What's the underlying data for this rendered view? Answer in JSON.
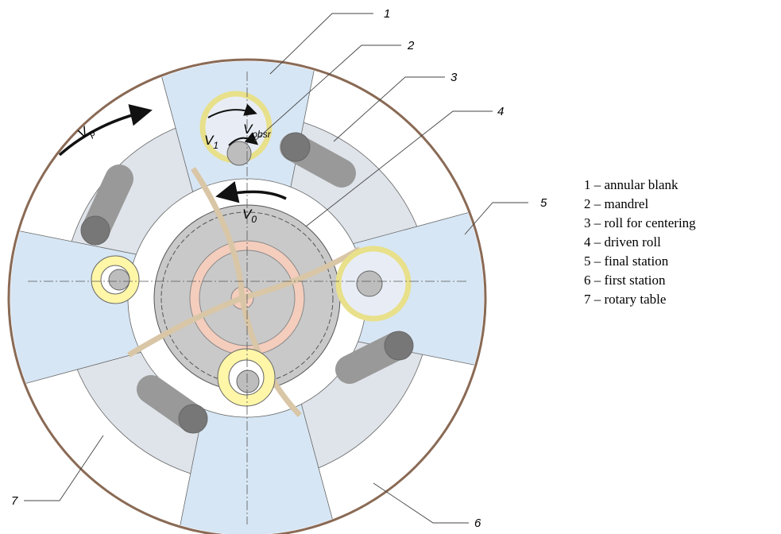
{
  "callouts": [
    "1",
    "2",
    "3",
    "4",
    "5",
    "6",
    "7"
  ],
  "velocities": [
    {
      "symbol": "V",
      "subscript": "p"
    },
    {
      "symbol": "V",
      "subscript": "obsr"
    },
    {
      "symbol": "V",
      "subscript": "1"
    },
    {
      "symbol": "V",
      "subscript": "0"
    }
  ],
  "legend": [
    "1 – annular blank",
    "2 – mandrel",
    "3 – roll for centering",
    "4 – driven roll",
    "5 – final station",
    "6 – first station",
    "7 – rotary table"
  ]
}
